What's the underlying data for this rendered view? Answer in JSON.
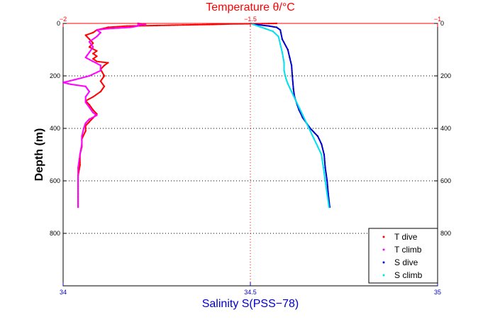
{
  "chart_data": {
    "type": "scatter",
    "top_axis": {
      "label": "Temperature θ/°C",
      "ticks": [
        "−2",
        "−1.5",
        "−1"
      ],
      "range": [
        -2,
        -1
      ],
      "color": "#ff0000"
    },
    "bottom_axis": {
      "label": "Salinity S(PSS−78)",
      "ticks": [
        "34",
        "34.5",
        "35"
      ],
      "range": [
        34,
        35
      ],
      "color": "#0000cc"
    },
    "left_axis": {
      "label": "Depth (m)",
      "ticks": [
        "0",
        "200",
        "400",
        "600",
        "800"
      ],
      "range": [
        0,
        1000
      ],
      "inverted": true
    },
    "right_axis": {
      "ticks": [
        "0",
        "200",
        "400",
        "600",
        "800"
      ]
    },
    "grid": true,
    "legend_position": "bottom-right",
    "series": [
      {
        "name": "T dive",
        "axis": "top",
        "color": "#ff0000",
        "points": [
          [
            -1.43,
            0
          ],
          [
            -1.55,
            2
          ],
          [
            -1.6,
            4
          ],
          [
            -1.68,
            6
          ],
          [
            -1.75,
            8
          ],
          [
            -1.83,
            10
          ],
          [
            -1.88,
            15
          ],
          [
            -1.91,
            25
          ],
          [
            -1.92,
            35
          ],
          [
            -1.94,
            45
          ],
          [
            -1.93,
            60
          ],
          [
            -1.92,
            75
          ],
          [
            -1.93,
            90
          ],
          [
            -1.91,
            105
          ],
          [
            -1.92,
            115
          ],
          [
            -1.91,
            125
          ],
          [
            -1.92,
            135
          ],
          [
            -1.91,
            145
          ],
          [
            -1.88,
            150
          ],
          [
            -1.89,
            160
          ],
          [
            -1.9,
            175
          ],
          [
            -1.89,
            200
          ],
          [
            -1.9,
            220
          ],
          [
            -1.89,
            240
          ],
          [
            -1.9,
            260
          ],
          [
            -1.92,
            280
          ],
          [
            -1.94,
            295
          ],
          [
            -1.93,
            310
          ],
          [
            -1.92,
            330
          ],
          [
            -1.91,
            345
          ],
          [
            -1.92,
            360
          ],
          [
            -1.93,
            375
          ],
          [
            -1.94,
            390
          ],
          [
            -1.94,
            410
          ],
          [
            -1.95,
            440
          ],
          [
            -1.95,
            470
          ],
          [
            -1.955,
            500
          ],
          [
            -1.955,
            540
          ],
          [
            -1.96,
            580
          ],
          [
            -1.96,
            620
          ],
          [
            -1.96,
            660
          ],
          [
            -1.96,
            700
          ]
        ]
      },
      {
        "name": "T climb",
        "axis": "top",
        "color": "#ff00ff",
        "points": [
          [
            -1.8,
            0
          ],
          [
            -1.78,
            3
          ],
          [
            -1.8,
            6
          ],
          [
            -1.8,
            10
          ],
          [
            -1.82,
            15
          ],
          [
            -1.88,
            20
          ],
          [
            -1.91,
            25
          ],
          [
            -1.9,
            35
          ],
          [
            -1.91,
            50
          ],
          [
            -1.93,
            70
          ],
          [
            -1.92,
            90
          ],
          [
            -1.93,
            110
          ],
          [
            -1.94,
            130
          ],
          [
            -1.92,
            145
          ],
          [
            -1.9,
            160
          ],
          [
            -1.9,
            180
          ],
          [
            -1.93,
            200
          ],
          [
            -1.97,
            215
          ],
          [
            -2.0,
            225
          ],
          [
            -1.98,
            232
          ],
          [
            -1.94,
            240
          ],
          [
            -1.93,
            260
          ],
          [
            -1.94,
            280
          ],
          [
            -1.94,
            300
          ],
          [
            -1.93,
            320
          ],
          [
            -1.92,
            340
          ],
          [
            -1.91,
            350
          ],
          [
            -1.93,
            365
          ],
          [
            -1.94,
            380
          ],
          [
            -1.945,
            400
          ],
          [
            -1.95,
            430
          ],
          [
            -1.95,
            460
          ],
          [
            -1.955,
            500
          ],
          [
            -1.96,
            550
          ],
          [
            -1.96,
            600
          ],
          [
            -1.96,
            650
          ],
          [
            -1.96,
            700
          ]
        ]
      },
      {
        "name": "S dive",
        "axis": "bottom",
        "color": "#0000cc",
        "points": [
          [
            34.5,
            0
          ],
          [
            34.52,
            5
          ],
          [
            34.55,
            10
          ],
          [
            34.57,
            15
          ],
          [
            34.58,
            25
          ],
          [
            34.585,
            60
          ],
          [
            34.6,
            100
          ],
          [
            34.605,
            130
          ],
          [
            34.61,
            160
          ],
          [
            34.612,
            200
          ],
          [
            34.615,
            250
          ],
          [
            34.618,
            280
          ],
          [
            34.625,
            310
          ],
          [
            34.63,
            330
          ],
          [
            34.64,
            360
          ],
          [
            34.65,
            380
          ],
          [
            34.66,
            400
          ],
          [
            34.68,
            430
          ],
          [
            34.69,
            460
          ],
          [
            34.697,
            500
          ],
          [
            34.7,
            550
          ],
          [
            34.705,
            600
          ],
          [
            34.708,
            650
          ],
          [
            34.712,
            700
          ]
        ]
      },
      {
        "name": "S climb",
        "axis": "bottom",
        "color": "#00e0ee",
        "points": [
          [
            34.5,
            0
          ],
          [
            34.51,
            5
          ],
          [
            34.52,
            10
          ],
          [
            34.54,
            20
          ],
          [
            34.56,
            30
          ],
          [
            34.575,
            50
          ],
          [
            34.58,
            80
          ],
          [
            34.585,
            110
          ],
          [
            34.59,
            150
          ],
          [
            34.59,
            180
          ],
          [
            34.595,
            210
          ],
          [
            34.6,
            230
          ],
          [
            34.61,
            260
          ],
          [
            34.62,
            290
          ],
          [
            34.63,
            320
          ],
          [
            34.64,
            350
          ],
          [
            34.65,
            380
          ],
          [
            34.66,
            410
          ],
          [
            34.67,
            440
          ],
          [
            34.68,
            470
          ],
          [
            34.69,
            500
          ],
          [
            34.695,
            550
          ],
          [
            34.7,
            600
          ],
          [
            34.705,
            650
          ],
          [
            34.71,
            700
          ]
        ]
      }
    ]
  }
}
